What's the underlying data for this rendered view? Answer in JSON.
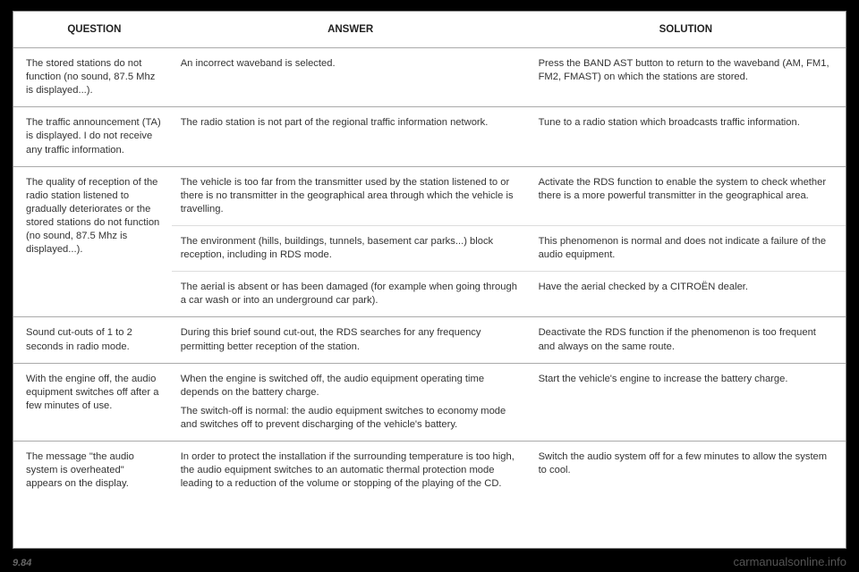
{
  "headers": {
    "q": "QUESTION",
    "a": "ANSWER",
    "s": "SOLUTION"
  },
  "rows": [
    {
      "q": "The stored stations do not function (no sound, 87.5 Mhz is displayed...).",
      "a": "An incorrect waveband is selected.",
      "s": "Press the BAND AST button to return to the waveband (AM, FM1, FM2, FMAST) on which the stations are stored."
    },
    {
      "q": "The traffic announcement (TA) is displayed. I do not receive any traffic information.",
      "a": "The radio station is not part of the regional traffic information network.",
      "s": "Tune to a radio station which broadcasts traffic information."
    },
    {
      "q": "The quality of reception of the radio station listened to gradually deteriorates or the stored stations do not function (no sound, 87.5 Mhz is displayed...).",
      "answers": [
        {
          "a": "The vehicle is too far from the transmitter used by the station listened to or there is no transmitter in the geographical area through which the vehicle is travelling.",
          "s": "Activate the RDS function to enable the system to check whether there is a more powerful transmitter in the geographical area."
        },
        {
          "a": "The environment (hills, buildings, tunnels, basement car parks...) block reception, including in RDS mode.",
          "s": "This phenomenon is normal and does not indicate a failure of the audio equipment."
        },
        {
          "a": "The aerial is absent or has been damaged (for example when going through a car wash or into an underground car park).",
          "s": "Have the aerial checked by a CITROËN dealer."
        }
      ]
    },
    {
      "q": "Sound cut-outs of 1 to 2 seconds in radio mode.",
      "a": "During this brief sound cut-out, the RDS searches for any frequency permitting better reception of the station.",
      "s": "Deactivate the RDS function if the phenomenon is too frequent and always on the same route."
    },
    {
      "q": "With the engine off, the audio equipment switches off after a few minutes of use.",
      "a": "When the engine is switched off, the audio equipment operating time depends on the battery charge.",
      "a2": "The switch-off is normal: the audio equipment switches to economy mode and switches off to prevent discharging of the vehicle's battery.",
      "s": "Start the vehicle's engine to increase the battery charge."
    },
    {
      "q": "The message \"the audio system is overheated\" appears on the display.",
      "a": "In order to protect the installation if the surrounding temperature is too high, the audio equipment switches to an automatic thermal protection mode leading to a reduction of the volume or stopping of the playing of the CD.",
      "s": "Switch the audio system off for a few minutes to allow the system to cool."
    }
  ],
  "pageNumber": "9.84",
  "watermark": "carmanualsonline.info"
}
